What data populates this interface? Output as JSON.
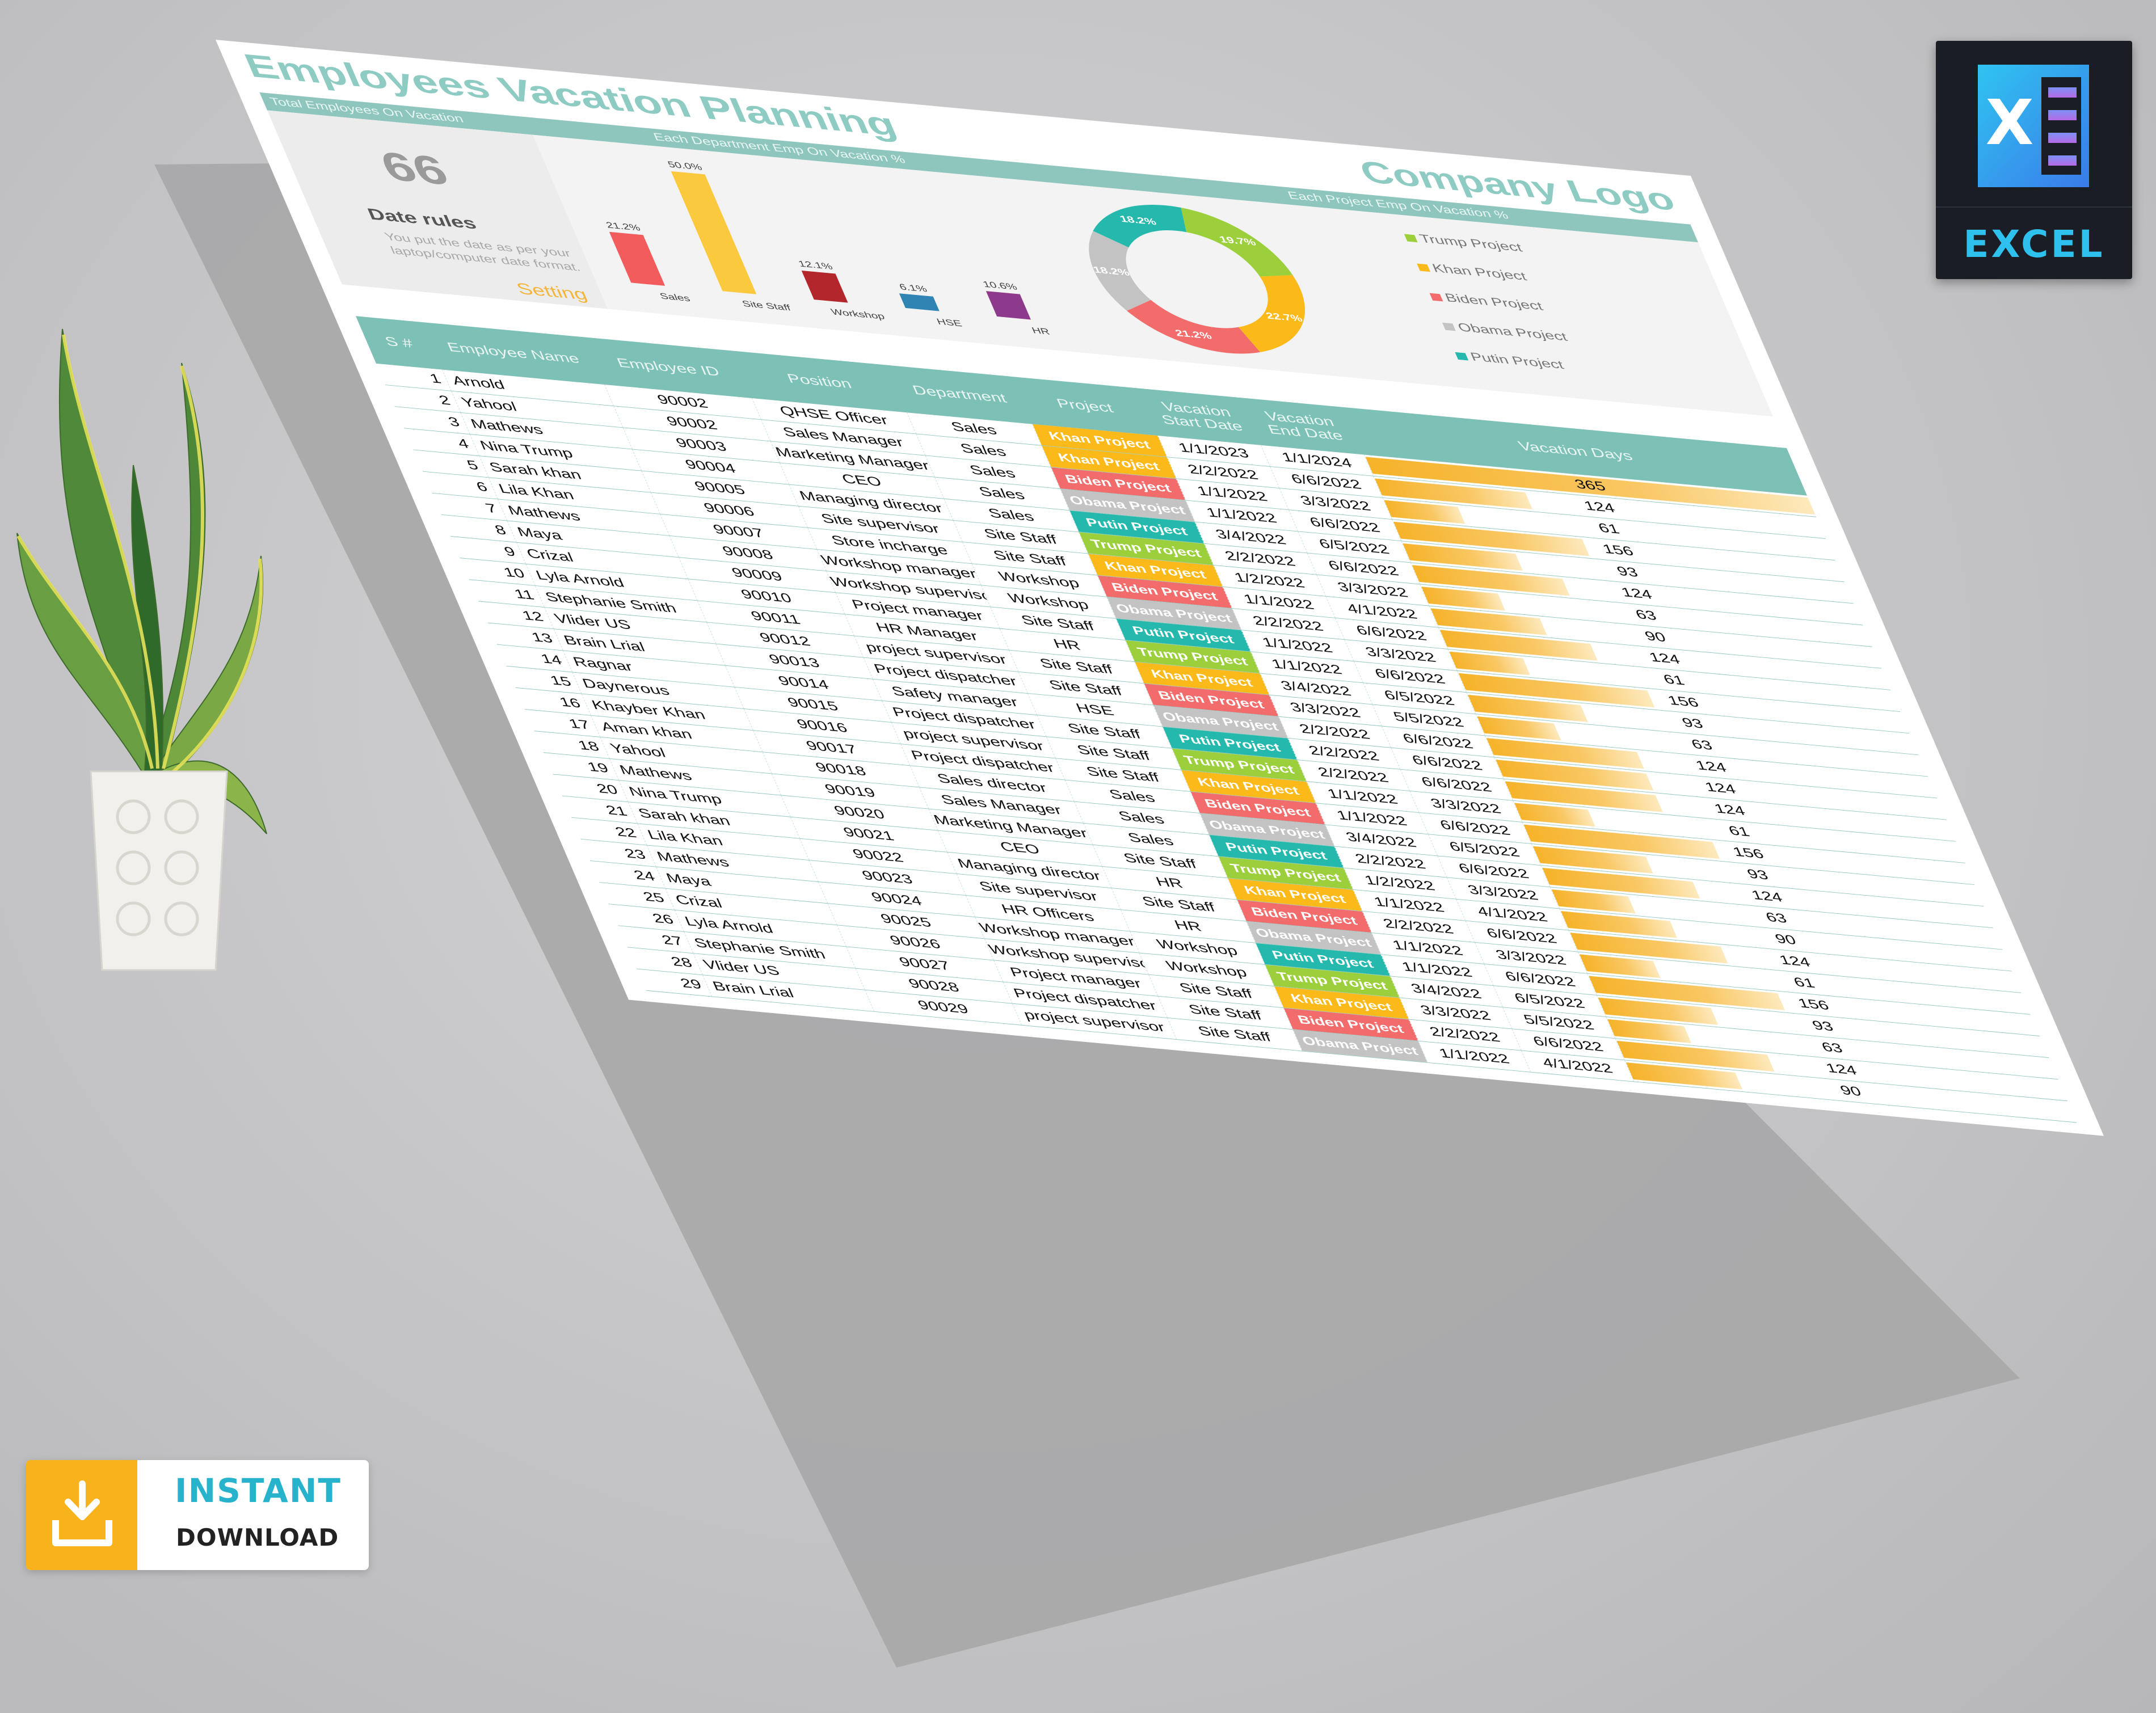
{
  "sheet": {
    "title": "Employees Vacation Planning",
    "logo": "Company Logo",
    "strip": {
      "kpi_label": "Total Employees On Vacation",
      "dept_label": "Each Department Emp On Vacation %",
      "project_label": "Each Project Emp On Vacation %"
    },
    "kpi": {
      "value": "66",
      "rule_title": "Date rules",
      "rule_text": "You put the date as per your laptop/computer date format.",
      "setting_label": "Setting"
    }
  },
  "chart_data": [
    {
      "type": "bar",
      "categories": [
        "Sales",
        "Site Staff",
        "Workshop",
        "HSE",
        "HR"
      ],
      "values": [
        21.2,
        50.0,
        12.1,
        6.1,
        10.6
      ],
      "value_labels": [
        "21.2%",
        "50.0%",
        "12.1%",
        "6.1%",
        "10.6%"
      ],
      "colors": [
        "#f25c5c",
        "#fbc93d",
        "#b3262c",
        "#2f84b3",
        "#8e3a8c"
      ],
      "title": "",
      "ylim": [
        0,
        55
      ]
    },
    {
      "type": "pie",
      "donut": true,
      "labels": [
        "Trump Project",
        "Khan Project",
        "Biden Project",
        "Obama Project",
        "Putin Project"
      ],
      "values": [
        19.7,
        22.7,
        21.2,
        18.2,
        18.2
      ],
      "value_labels": [
        "19.7%",
        "22.7%",
        "21.2%",
        "18.2%",
        "18.2%"
      ],
      "colors": [
        "#9bcf3b",
        "#fbb91a",
        "#f36c6c",
        "#c3c3c3",
        "#25b9ad"
      ],
      "legend_position": "right"
    }
  ],
  "table": {
    "headers": [
      "S #",
      "Employee Name",
      "Employee ID",
      "Position",
      "Department",
      "Project",
      "Vacation Start Date",
      "Vacation End Date",
      "Vacation Days"
    ],
    "max_days": 365,
    "project_colors": {
      "Trump Project": "#9bcf3b",
      "Khan Project": "#fbb91a",
      "Biden Project": "#f36c6c",
      "Obama Project": "#c3c3c3",
      "Putin Project": "#25b9ad"
    },
    "rows": [
      {
        "sn": "1",
        "name": "Arnold",
        "id": "90002",
        "position": "QHSE Officer",
        "department": "Sales",
        "project": "Khan Project",
        "start": "1/1/2023",
        "end": "1/1/2024",
        "days": 365
      },
      {
        "sn": "2",
        "name": "Yahool",
        "id": "90002",
        "position": "Sales Manager",
        "department": "Sales",
        "project": "Khan Project",
        "start": "2/2/2022",
        "end": "6/6/2022",
        "days": 124
      },
      {
        "sn": "3",
        "name": "Mathews",
        "id": "90003",
        "position": "Marketing Manager",
        "department": "Sales",
        "project": "Biden Project",
        "start": "1/1/2022",
        "end": "3/3/2022",
        "days": 61
      },
      {
        "sn": "4",
        "name": "Nina Trump",
        "id": "90004",
        "position": "CEO",
        "department": "Sales",
        "project": "Obama Project",
        "start": "1/1/2022",
        "end": "6/6/2022",
        "days": 156
      },
      {
        "sn": "5",
        "name": "Sarah khan",
        "id": "90005",
        "position": "Managing director",
        "department": "Sales",
        "project": "Putin Project",
        "start": "3/4/2022",
        "end": "6/5/2022",
        "days": 93
      },
      {
        "sn": "6",
        "name": "Lila Khan",
        "id": "90006",
        "position": "Site supervisor",
        "department": "Site Staff",
        "project": "Trump Project",
        "start": "2/2/2022",
        "end": "6/6/2022",
        "days": 124
      },
      {
        "sn": "7",
        "name": "Mathews",
        "id": "90007",
        "position": "Store incharge",
        "department": "Site Staff",
        "project": "Khan Project",
        "start": "1/2/2022",
        "end": "3/3/2022",
        "days": 63
      },
      {
        "sn": "8",
        "name": "Maya",
        "id": "90008",
        "position": "Workshop manager",
        "department": "Workshop",
        "project": "Biden Project",
        "start": "1/1/2022",
        "end": "4/1/2022",
        "days": 90
      },
      {
        "sn": "9",
        "name": "Crizal",
        "id": "90009",
        "position": "Workshop supervisor",
        "department": "Workshop",
        "project": "Obama Project",
        "start": "2/2/2022",
        "end": "6/6/2022",
        "days": 124
      },
      {
        "sn": "10",
        "name": "Lyla Arnold",
        "id": "90010",
        "position": "Project manager",
        "department": "Site Staff",
        "project": "Putin Project",
        "start": "1/1/2022",
        "end": "3/3/2022",
        "days": 61
      },
      {
        "sn": "11",
        "name": "Stephanie Smith",
        "id": "90011",
        "position": "HR Manager",
        "department": "HR",
        "project": "Trump Project",
        "start": "1/1/2022",
        "end": "6/6/2022",
        "days": 156
      },
      {
        "sn": "12",
        "name": "Vlider US",
        "id": "90012",
        "position": "project supervisor",
        "department": "Site Staff",
        "project": "Khan Project",
        "start": "3/4/2022",
        "end": "6/5/2022",
        "days": 93
      },
      {
        "sn": "13",
        "name": "Brain Lrial",
        "id": "90013",
        "position": "Project dispatcher",
        "department": "Site Staff",
        "project": "Biden Project",
        "start": "3/3/2022",
        "end": "5/5/2022",
        "days": 63
      },
      {
        "sn": "14",
        "name": "Ragnar",
        "id": "90014",
        "position": "Safety manager",
        "department": "HSE",
        "project": "Obama Project",
        "start": "2/2/2022",
        "end": "6/6/2022",
        "days": 124
      },
      {
        "sn": "15",
        "name": "Daynerous",
        "id": "90015",
        "position": "Project dispatcher",
        "department": "Site Staff",
        "project": "Putin Project",
        "start": "2/2/2022",
        "end": "6/6/2022",
        "days": 124
      },
      {
        "sn": "16",
        "name": "Khayber Khan",
        "id": "90016",
        "position": "project supervisor",
        "department": "Site Staff",
        "project": "Trump Project",
        "start": "2/2/2022",
        "end": "6/6/2022",
        "days": 124
      },
      {
        "sn": "17",
        "name": "Aman khan",
        "id": "90017",
        "position": "Project dispatcher",
        "department": "Site Staff",
        "project": "Khan Project",
        "start": "1/1/2022",
        "end": "3/3/2022",
        "days": 61
      },
      {
        "sn": "18",
        "name": "Yahool",
        "id": "90018",
        "position": "Sales director",
        "department": "Sales",
        "project": "Biden Project",
        "start": "1/1/2022",
        "end": "6/6/2022",
        "days": 156
      },
      {
        "sn": "19",
        "name": "Mathews",
        "id": "90019",
        "position": "Sales Manager",
        "department": "Sales",
        "project": "Obama Project",
        "start": "3/4/2022",
        "end": "6/5/2022",
        "days": 93
      },
      {
        "sn": "20",
        "name": "Nina Trump",
        "id": "90020",
        "position": "Marketing Manager",
        "department": "Sales",
        "project": "Putin Project",
        "start": "2/2/2022",
        "end": "6/6/2022",
        "days": 124
      },
      {
        "sn": "21",
        "name": "Sarah khan",
        "id": "90021",
        "position": "CEO",
        "department": "Site Staff",
        "project": "Trump Project",
        "start": "1/2/2022",
        "end": "3/3/2022",
        "days": 63
      },
      {
        "sn": "22",
        "name": "Lila Khan",
        "id": "90022",
        "position": "Managing director",
        "department": "HR",
        "project": "Khan Project",
        "start": "1/1/2022",
        "end": "4/1/2022",
        "days": 90
      },
      {
        "sn": "23",
        "name": "Mathews",
        "id": "90023",
        "position": "Site supervisor",
        "department": "Site Staff",
        "project": "Biden Project",
        "start": "2/2/2022",
        "end": "6/6/2022",
        "days": 124
      },
      {
        "sn": "24",
        "name": "Maya",
        "id": "90024",
        "position": "HR Officers",
        "department": "HR",
        "project": "Obama Project",
        "start": "1/1/2022",
        "end": "3/3/2022",
        "days": 61
      },
      {
        "sn": "25",
        "name": "Crizal",
        "id": "90025",
        "position": "Workshop manager",
        "department": "Workshop",
        "project": "Putin Project",
        "start": "1/1/2022",
        "end": "6/6/2022",
        "days": 156
      },
      {
        "sn": "26",
        "name": "Lyla Arnold",
        "id": "90026",
        "position": "Workshop supervisor",
        "department": "Workshop",
        "project": "Trump Project",
        "start": "3/4/2022",
        "end": "6/5/2022",
        "days": 93
      },
      {
        "sn": "27",
        "name": "Stephanie Smith",
        "id": "90027",
        "position": "Project manager",
        "department": "Site Staff",
        "project": "Khan Project",
        "start": "3/3/2022",
        "end": "5/5/2022",
        "days": 63
      },
      {
        "sn": "28",
        "name": "Vlider US",
        "id": "90028",
        "position": "Project dispatcher",
        "department": "Site Staff",
        "project": "Biden Project",
        "start": "2/2/2022",
        "end": "6/6/2022",
        "days": 124
      },
      {
        "sn": "29",
        "name": "Brain Lrial",
        "id": "90029",
        "position": "project supervisor",
        "department": "Site Staff",
        "project": "Obama Project",
        "start": "1/1/2022",
        "end": "4/1/2022",
        "days": 90
      }
    ]
  },
  "badges": {
    "excel_label": "EXCEL",
    "excel_letter": "X",
    "download_line1": "INSTANT",
    "download_line2": "DOWNLOAD",
    "download_icon": "download-tray-icon"
  }
}
